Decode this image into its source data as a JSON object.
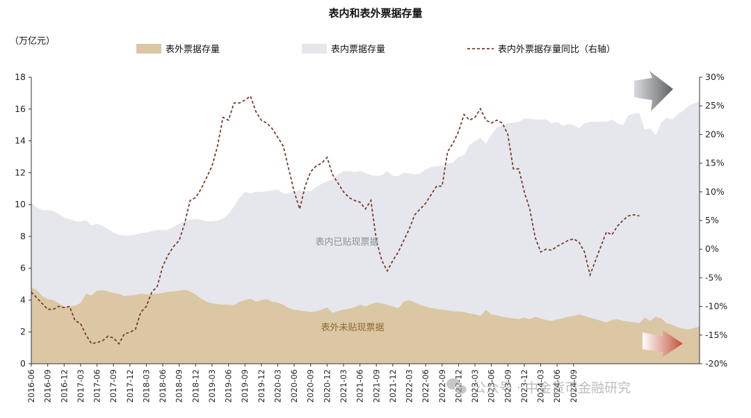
{
  "chart_data": {
    "type": "area",
    "title": "表内和表外票据存量",
    "ylabel_left": "（万亿元）",
    "ylim_left": [
      0,
      18
    ],
    "yticks_left": [
      0,
      2,
      4,
      6,
      8,
      10,
      12,
      14,
      16,
      18
    ],
    "ylim_right": [
      -20,
      30
    ],
    "yticks_right": [
      "-20%",
      "-15%",
      "-10%",
      "-5%",
      "0%",
      "5%",
      "10%",
      "15%",
      "20%",
      "25%",
      "30%"
    ],
    "x_tick_labels": [
      "2016-06",
      "2016-09",
      "2016-12",
      "2017-03",
      "2017-06",
      "2017-09",
      "2017-12",
      "2018-03",
      "2018-06",
      "2018-09",
      "2018-12",
      "2019-03",
      "2019-06",
      "2019-09",
      "2019-12",
      "2020-03",
      "2020-06",
      "2020-09",
      "2020-12",
      "2021-03",
      "2021-06",
      "2021-09",
      "2021-12",
      "2022-03",
      "2022-06",
      "2022-09",
      "2022-12",
      "2023-03",
      "2023-06",
      "2023-09",
      "2023-12",
      "2024-03",
      "2024-06",
      "2024-09"
    ],
    "legend": [
      "表外票据存量",
      "表内票据存量",
      "表内外票据存量同比（右轴）"
    ],
    "annotations": [
      "表内已贴现票据",
      "表外未贴现票据"
    ],
    "colors": {
      "offbalance": "#dcc7a4",
      "onbalance": "#e6e7ec",
      "yoy": "#7a3a2a",
      "arrow_dark": "#6f7378",
      "arrow_red": "#c4503a"
    },
    "series": [
      {
        "name": "表外票据存量",
        "axis": "left",
        "values": [
          4.8,
          4.62,
          4.25,
          4.05,
          4.0,
          3.8,
          3.6,
          3.58,
          3.65,
          3.82,
          4.4,
          4.3,
          4.6,
          4.62,
          4.55,
          4.45,
          4.4,
          4.25,
          4.3,
          4.32,
          4.4,
          4.35,
          4.38,
          4.4,
          4.45,
          4.52,
          4.55,
          4.6,
          4.65,
          4.55,
          4.35,
          4.1,
          3.9,
          3.8,
          3.75,
          3.72,
          3.7,
          3.68,
          3.9,
          4.0,
          4.1,
          3.9,
          4.0,
          4.05,
          3.9,
          3.85,
          3.7,
          3.5,
          3.4,
          3.35,
          3.3,
          3.25,
          3.3,
          3.4,
          3.55,
          3.2,
          3.3,
          3.4,
          3.45,
          3.55,
          3.7,
          3.6,
          3.75,
          3.85,
          3.8,
          3.7,
          3.6,
          3.5,
          3.9,
          4.0,
          3.85,
          3.7,
          3.6,
          3.5,
          3.45,
          3.4,
          3.35,
          3.3,
          3.28,
          3.25,
          3.15,
          3.1,
          3.0,
          3.4,
          3.1,
          3.05,
          2.95,
          2.9,
          2.85,
          2.8,
          2.9,
          2.8,
          2.95,
          2.85,
          2.75,
          2.7,
          2.78,
          2.85,
          2.95,
          3.0,
          3.1,
          3.0,
          2.9,
          2.8,
          2.7,
          2.6,
          2.75,
          2.8,
          2.7,
          2.65,
          2.6,
          2.55,
          2.9,
          2.7,
          2.95,
          2.85,
          2.55,
          2.45,
          2.3,
          2.2,
          2.15,
          2.25,
          2.35
        ]
      },
      {
        "name": "表内票据存量",
        "axis": "left",
        "values": [
          5.3,
          5.2,
          5.4,
          5.6,
          5.6,
          5.6,
          5.6,
          5.5,
          5.3,
          5.1,
          4.6,
          4.4,
          4.2,
          4.05,
          3.9,
          3.8,
          3.7,
          3.8,
          3.75,
          3.8,
          3.8,
          3.9,
          3.95,
          4.0,
          3.95,
          3.9,
          4.05,
          4.2,
          4.3,
          4.5,
          4.75,
          4.95,
          5.05,
          5.15,
          5.25,
          5.4,
          5.7,
          6.2,
          6.5,
          6.8,
          6.6,
          6.9,
          6.8,
          6.8,
          7.0,
          7.1,
          7.0,
          7.2,
          7.4,
          7.55,
          7.55,
          7.6,
          7.8,
          7.9,
          7.9,
          8.4,
          8.6,
          8.7,
          8.65,
          8.5,
          8.4,
          8.4,
          8.1,
          7.95,
          8.05,
          8.4,
          8.2,
          8.3,
          8.1,
          7.95,
          8.05,
          8.25,
          8.6,
          8.85,
          8.95,
          9.05,
          9.2,
          9.35,
          9.7,
          9.85,
          10.6,
          10.9,
          11.2,
          10.4,
          11.3,
          11.8,
          12.05,
          12.2,
          12.3,
          12.4,
          12.5,
          12.6,
          12.4,
          12.5,
          12.6,
          12.4,
          12.4,
          12.1,
          12.1,
          12.0,
          11.7,
          12.1,
          12.3,
          12.4,
          12.5,
          12.6,
          12.6,
          12.3,
          12.3,
          12.95,
          13.1,
          13.2,
          11.8,
          12.1,
          11.4,
          12.3,
          12.9,
          12.9,
          13.35,
          13.7,
          14.05,
          14.1,
          14.15
        ]
      },
      {
        "name": "表内外票据存量同比（右轴）",
        "axis": "right",
        "unit": "%",
        "values": [
          -7.5,
          -8.5,
          -9.5,
          -10.5,
          -10.5,
          -10.0,
          -10.2,
          -10.0,
          -12.5,
          -13.0,
          -15.0,
          -16.5,
          -16.3,
          -16.0,
          -15.2,
          -15.5,
          -16.5,
          -14.8,
          -14.5,
          -14.0,
          -11.0,
          -10.0,
          -7.5,
          -6.5,
          -3.0,
          -1.0,
          0.5,
          1.5,
          4.5,
          8.5,
          9.0,
          10.5,
          12.5,
          14.5,
          18.0,
          23.0,
          22.5,
          25.5,
          25.5,
          26.0,
          26.7,
          24.0,
          22.5,
          22.0,
          21.0,
          19.5,
          18.0,
          14.0,
          10.0,
          7.0,
          11.0,
          13.5,
          14.5,
          15.0,
          16.0,
          13.0,
          11.5,
          10.0,
          9.0,
          8.5,
          8.2,
          7.0,
          8.5,
          1.5,
          -2.0,
          -3.8,
          -2.0,
          -0.5,
          1.5,
          3.5,
          6.0,
          7.0,
          8.0,
          9.5,
          11.0,
          11.0,
          17.0,
          18.5,
          20.5,
          23.5,
          22.5,
          23.0,
          24.5,
          22.5,
          22.0,
          22.5,
          22.0,
          20.0,
          14.0,
          14.0,
          10.0,
          7.0,
          2.0,
          -0.5,
          0.0,
          -0.2,
          0.5,
          1.0,
          1.5,
          1.8,
          1.2,
          -0.5,
          -4.5,
          -2.0,
          0.5,
          3.0,
          2.5,
          4.0,
          5.0,
          5.8,
          6.0,
          5.8
        ]
      }
    ]
  },
  "watermark": {
    "icon": "wechat-icon",
    "text": "公众号 · 中金货币金融研究"
  }
}
